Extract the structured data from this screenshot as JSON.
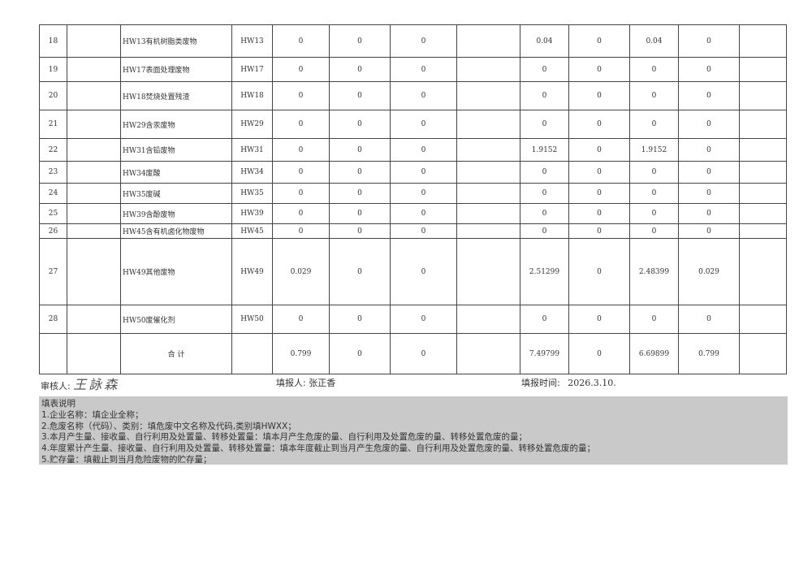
{
  "table": {
    "rows": [
      {
        "no": "18",
        "name": "HW13有机树脂类废物",
        "code": "HW13",
        "values": [
          "0",
          "0",
          "0",
          "",
          "0.04",
          "0",
          "0.04",
          "0",
          ""
        ]
      },
      {
        "no": "19",
        "name": "HW17表面处理废物",
        "code": "HW17",
        "values": [
          "0",
          "0",
          "0",
          "",
          "0",
          "0",
          "0",
          "0",
          ""
        ]
      },
      {
        "no": "20",
        "name": "HW18焚烧处置残渣",
        "code": "HW18",
        "values": [
          "0",
          "0",
          "0",
          "",
          "0",
          "0",
          "0",
          "0",
          ""
        ]
      },
      {
        "no": "21",
        "name": "HW29含汞废物",
        "code": "HW29",
        "values": [
          "0",
          "0",
          "0",
          "",
          "0",
          "0",
          "0",
          "0",
          ""
        ]
      },
      {
        "no": "22",
        "name": "HW31含铅废物",
        "code": "HW31",
        "values": [
          "0",
          "0",
          "0",
          "",
          "1.9152",
          "0",
          "1.9152",
          "0",
          ""
        ]
      },
      {
        "no": "23",
        "name": "HW34废酸",
        "code": "HW34",
        "values": [
          "0",
          "0",
          "0",
          "",
          "0",
          "0",
          "0",
          "0",
          ""
        ]
      },
      {
        "no": "24",
        "name": "HW35废碱",
        "code": "HW35",
        "values": [
          "0",
          "0",
          "0",
          "",
          "0",
          "0",
          "0",
          "0",
          ""
        ]
      },
      {
        "no": "25",
        "name": "HW39含酚废物",
        "code": "HW39",
        "values": [
          "0",
          "0",
          "0",
          "",
          "0",
          "0",
          "0",
          "0",
          ""
        ]
      },
      {
        "no": "26",
        "name": "HW45含有机卤化物废物",
        "code": "HW45",
        "values": [
          "0",
          "0",
          "0",
          "",
          "0",
          "0",
          "0",
          "0",
          ""
        ]
      },
      {
        "no": "27",
        "name": "HW49其他废物",
        "code": "HW49",
        "values": [
          "0.029",
          "0",
          "0",
          "",
          "2.51299",
          "0",
          "2.48399",
          "0.029",
          ""
        ]
      },
      {
        "no": "28",
        "name": "HW50废催化剂",
        "code": "HW50",
        "values": [
          "0",
          "0",
          "0",
          "",
          "0",
          "0",
          "0",
          "0",
          ""
        ]
      }
    ],
    "total": {
      "label": "合  计",
      "values": [
        "0.799",
        "0",
        "0",
        "",
        "7.49799",
        "0",
        "6.69899",
        "0.799",
        ""
      ]
    }
  },
  "footer": {
    "reviewer_label": "审核人:",
    "reviewer_signature": "王詠森",
    "filler_label": "填报人:",
    "filler": "张正香",
    "date_label": "填报时间:",
    "date": "2026.3.10."
  },
  "notes": {
    "title": "填表说明",
    "items": [
      "1.企业名称：填企业全称；",
      "2.危废名称（代码）、类别：填危废中文名称及代码,类别填HWXX；",
      "3.本月产生量、接收量、自行利用及处置量、转移处置量：填本月产生危废的量、自行利用及处置危废的量、转移处置危废的量；",
      "4.年度累计产生量、接收量、自行利用及处置量、转移处置量：填本年度截止到当月产生危废的量、自行利用及处置危废的量、转移处置危废的量；",
      "5.贮存量：填截止到当月危险废物的贮存量；"
    ]
  }
}
